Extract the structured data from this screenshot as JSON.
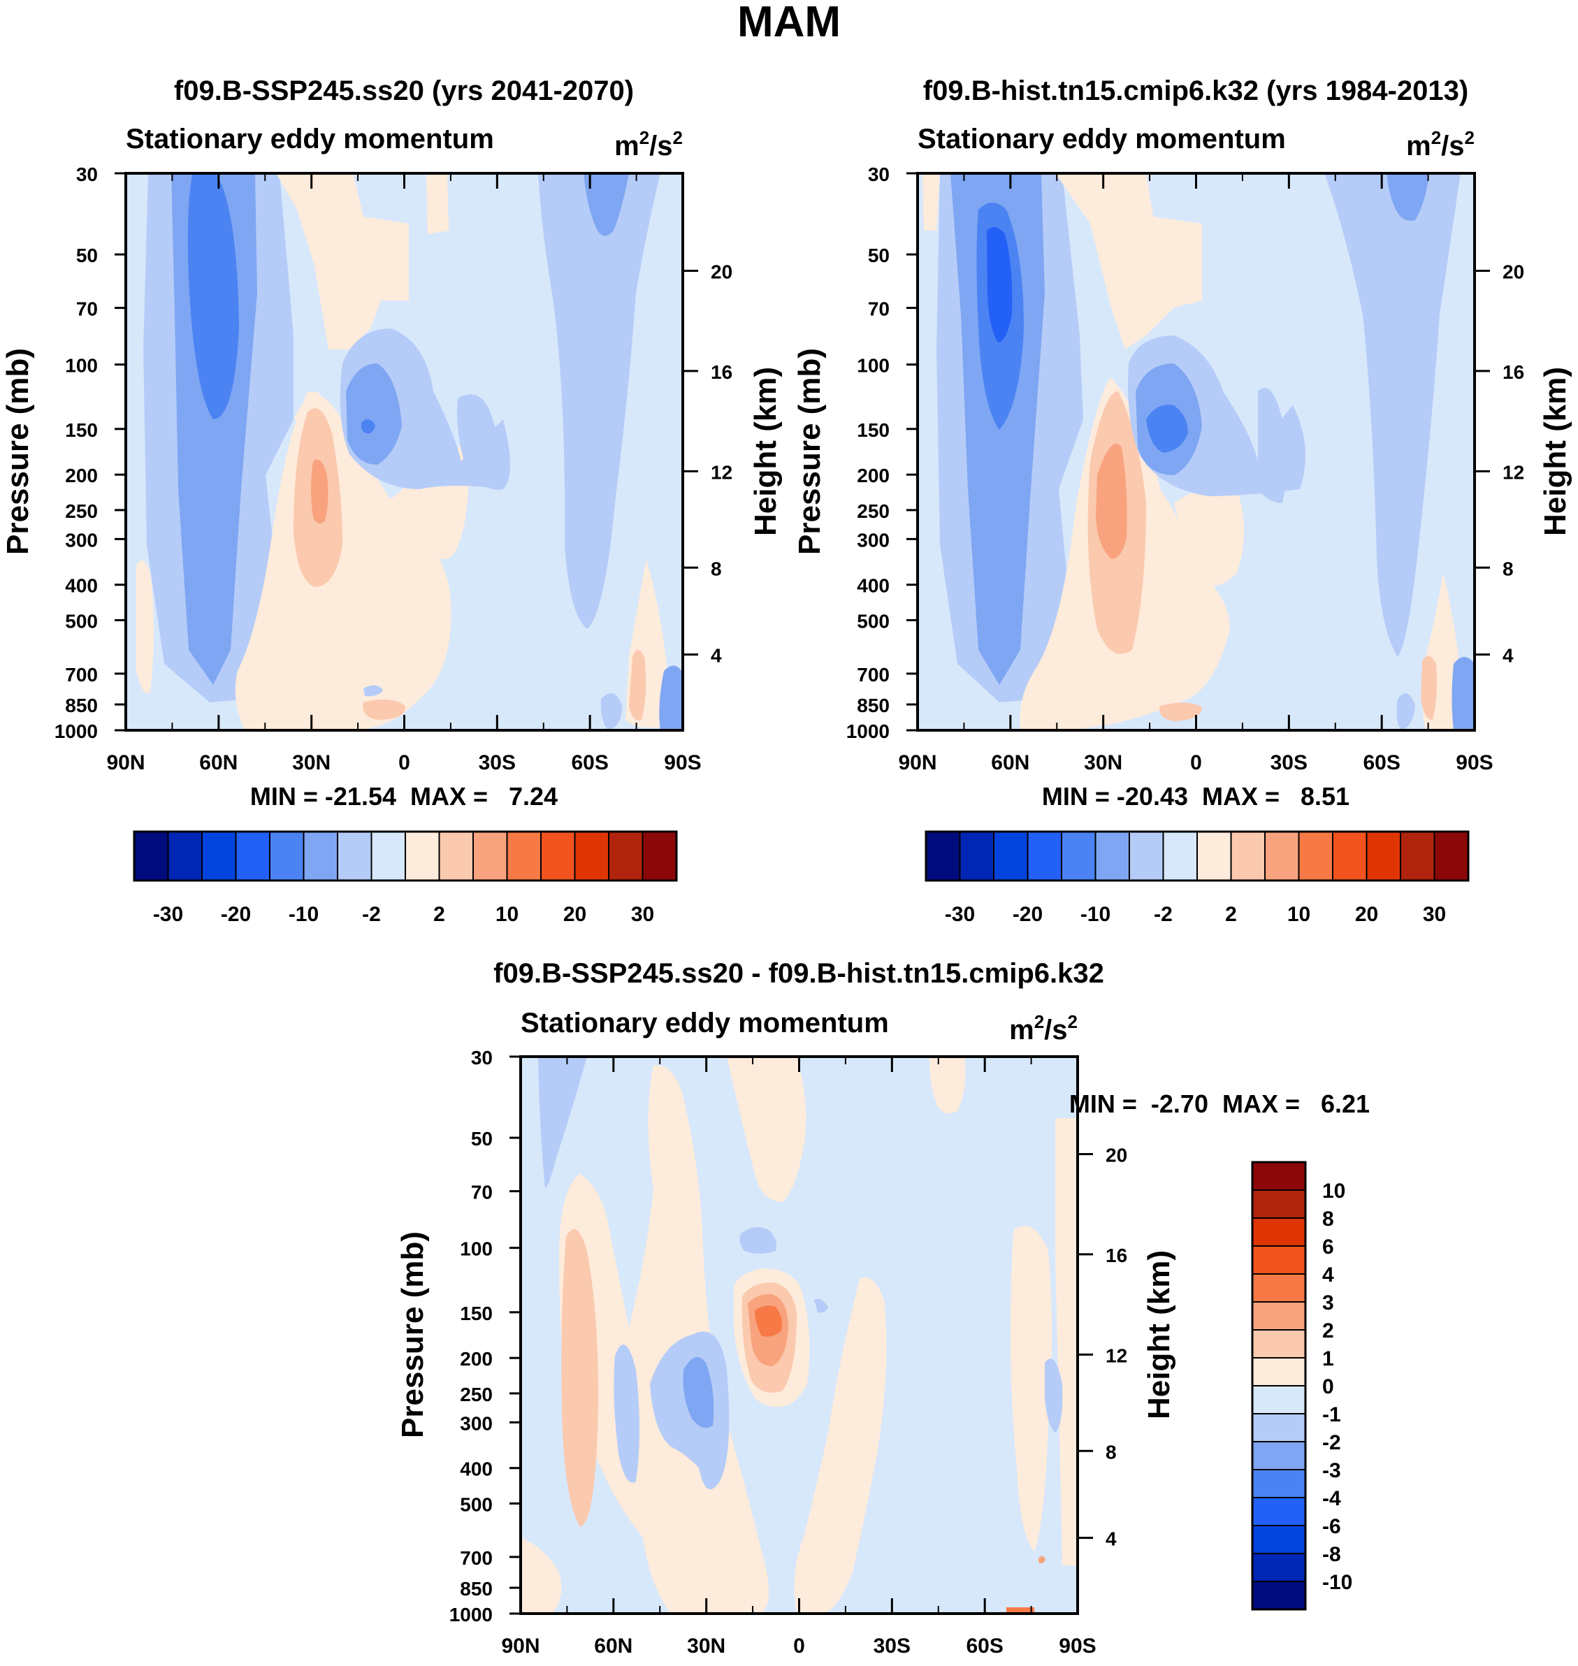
{
  "figure": {
    "title": "MAM"
  },
  "colors": {
    "levels15": [
      "#000c7d",
      "#0026b5",
      "#0343de",
      "#2260f6",
      "#4b83f3",
      "#7fa6f3",
      "#b5ccf8",
      "#d8e8fb",
      "#fdebdb",
      "#fbc9ae",
      "#f8a37e",
      "#f77a46",
      "#f2531f",
      "#df3505",
      "#b0230c",
      "#8c0707"
    ],
    "levels14": [
      "#000c7d",
      "#0026b5",
      "#0343de",
      "#2260f6",
      "#4b83f3",
      "#7fa6f3",
      "#b5ccf8",
      "#d8e8fb",
      "#fdebdb",
      "#fbc9ae",
      "#f8a37e",
      "#f77a46",
      "#f2531f",
      "#df3505",
      "#b0230c",
      "#8c0707"
    ]
  },
  "panels": [
    {
      "id": "p1",
      "title": "f09.B-SSP245.ss20 (yrs 2041-2070)",
      "left_label": "Stationary eddy momentum",
      "units_base": "m",
      "units_exp1": "2",
      "units_sep": "/s",
      "units_exp2": "2",
      "ylabel": "Pressure (mb)",
      "ylabel_right": "Height (km)",
      "stats": "MIN = -21.54  MAX =   7.24",
      "chart_data": {
        "type": "contour",
        "x": [
          "90N",
          "60N",
          "30N",
          "0",
          "30S",
          "60S",
          "90S"
        ],
        "y_pressure": [
          "30",
          "50",
          "70",
          "100",
          "150",
          "200",
          "250",
          "300",
          "400",
          "500",
          "700",
          "850",
          "1000"
        ],
        "y_height_km": [
          "20",
          "16",
          "12",
          "8",
          "4"
        ],
        "colorbar_labels": [
          "-30",
          "-20",
          "-10",
          "-2",
          "2",
          "10",
          "20",
          "30"
        ],
        "min": -21.54,
        "max": 7.24
      }
    },
    {
      "id": "p2",
      "title": "f09.B-hist.tn15.cmip6.k32 (yrs 1984-2013)",
      "left_label": "Stationary eddy momentum",
      "units_base": "m",
      "units_exp1": "2",
      "units_sep": "/s",
      "units_exp2": "2",
      "ylabel": "Pressure (mb)",
      "ylabel_right": "Height (km)",
      "stats": "MIN = -20.43  MAX =   8.51",
      "chart_data": {
        "type": "contour",
        "x": [
          "90N",
          "60N",
          "30N",
          "0",
          "30S",
          "60S",
          "90S"
        ],
        "y_pressure": [
          "30",
          "50",
          "70",
          "100",
          "150",
          "200",
          "250",
          "300",
          "400",
          "500",
          "700",
          "850",
          "1000"
        ],
        "y_height_km": [
          "20",
          "16",
          "12",
          "8",
          "4"
        ],
        "colorbar_labels": [
          "-30",
          "-20",
          "-10",
          "-2",
          "2",
          "10",
          "20",
          "30"
        ],
        "min": -20.43,
        "max": 8.51
      }
    },
    {
      "id": "p3",
      "title": "f09.B-SSP245.ss20 - f09.B-hist.tn15.cmip6.k32",
      "left_label": "Stationary eddy momentum",
      "units_base": "m",
      "units_exp1": "2",
      "units_sep": "/s",
      "units_exp2": "2",
      "ylabel": "Pressure (mb)",
      "ylabel_right": "Height (km)",
      "stats": "MIN =  -2.70  MAX =   6.21",
      "chart_data": {
        "type": "contour",
        "x": [
          "90N",
          "60N",
          "30N",
          "0",
          "30S",
          "60S",
          "90S"
        ],
        "y_pressure": [
          "30",
          "50",
          "70",
          "100",
          "150",
          "200",
          "250",
          "300",
          "400",
          "500",
          "700",
          "850",
          "1000"
        ],
        "y_height_km": [
          "20",
          "16",
          "12",
          "8",
          "4"
        ],
        "colorbar_labels": [
          "10",
          "8",
          "6",
          "4",
          "3",
          "2",
          "1",
          "0",
          "-1",
          "-2",
          "-3",
          "-4",
          "-6",
          "-8",
          "-10"
        ],
        "min": -2.7,
        "max": 6.21
      }
    }
  ]
}
